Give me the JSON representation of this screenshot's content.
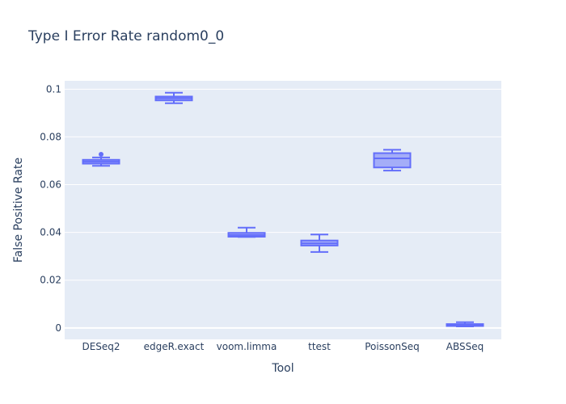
{
  "chart_data": {
    "type": "box",
    "title": "Type I Error Rate random0_0",
    "xlabel": "Tool",
    "ylabel": "False Positive Rate",
    "ylim": [
      -0.0048,
      0.1035
    ],
    "yticks": [
      0,
      0.02,
      0.04,
      0.06,
      0.08,
      0.1
    ],
    "ytick_labels": [
      "0",
      "0.02",
      "0.04",
      "0.06",
      "0.08",
      "0.1"
    ],
    "categories": [
      "DESeq2",
      "edgeR.exact",
      "voom.limma",
      "ttest",
      "PoissonSeq",
      "ABSSeq"
    ],
    "boxes": [
      {
        "category": "DESeq2",
        "min": 0.0679,
        "q1": 0.0688,
        "median": 0.0696,
        "q3": 0.0704,
        "max": 0.0714,
        "outliers": [
          0.0727
        ]
      },
      {
        "category": "edgeR.exact",
        "min": 0.0941,
        "q1": 0.0953,
        "median": 0.0962,
        "q3": 0.0969,
        "max": 0.0985,
        "outliers": []
      },
      {
        "category": "voom.limma",
        "min": 0.0381,
        "q1": 0.0382,
        "median": 0.0389,
        "q3": 0.0398,
        "max": 0.042,
        "outliers": []
      },
      {
        "category": "ttest",
        "min": 0.0318,
        "q1": 0.0345,
        "median": 0.0354,
        "q3": 0.0366,
        "max": 0.0391,
        "outliers": []
      },
      {
        "category": "PoissonSeq",
        "min": 0.0659,
        "q1": 0.0672,
        "median": 0.071,
        "q3": 0.0732,
        "max": 0.0746,
        "outliers": []
      },
      {
        "category": "ABSSeq",
        "min": 0.0006,
        "q1": 0.0008,
        "median": 0.0011,
        "q3": 0.0016,
        "max": 0.0024,
        "outliers": []
      }
    ],
    "grid": true,
    "legend": false,
    "colors": {
      "box_line": "#636efa",
      "box_fill": "rgba(99,110,250,0.5)",
      "plot_bg": "#e5ecf6",
      "grid": "#ffffff",
      "text": "#2a3f5f"
    }
  }
}
